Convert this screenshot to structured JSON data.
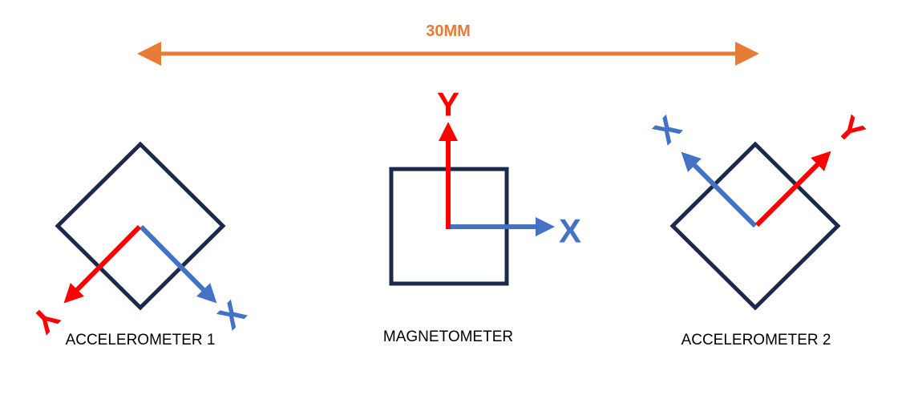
{
  "dimension": {
    "label": "30MM",
    "color": "#e87b35"
  },
  "sensors": {
    "accelerometer_1": {
      "label": "ACCELEROMETER 1",
      "x_axis": "X",
      "y_axis": "Y"
    },
    "magnetometer": {
      "label": "MAGNETOMETER",
      "x_axis": "X",
      "y_axis": "Y"
    },
    "accelerometer_2": {
      "label": "ACCELEROMETER 2",
      "x_axis": "X",
      "y_axis": "Y"
    }
  },
  "colors": {
    "outline": "#1b2a4a",
    "x_axis": "#4472c4",
    "y_axis": "#ff0000",
    "text": "#000000"
  }
}
